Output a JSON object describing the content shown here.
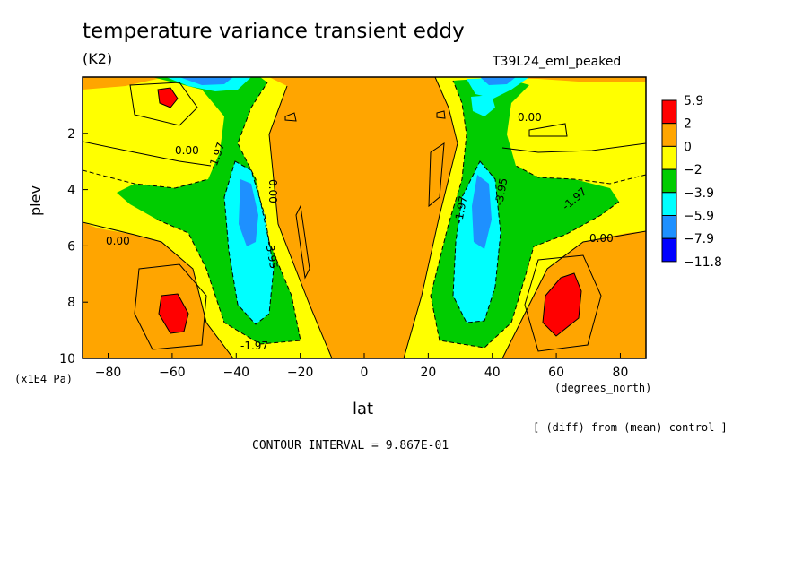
{
  "chart_data": {
    "type": "heatmap",
    "title": "temperature variance transient eddy",
    "units": "(K2)",
    "run_name": "T39L24_eml_peaked",
    "xlabel": "lat",
    "x_units": "(degrees_north)",
    "ylabel": "plev",
    "y_units": "(x1E4 Pa)",
    "xlim": [
      -88,
      88
    ],
    "ylim": [
      10,
      0
    ],
    "x_ticks": [
      "-80",
      "-60",
      "-40",
      "-20",
      "0",
      "20",
      "40",
      "60",
      "80"
    ],
    "y_ticks": [
      "2",
      "4",
      "6",
      "8",
      "10"
    ],
    "colorbar": {
      "labels": [
        "5.9",
        "2",
        "0",
        "-2",
        "-3.9",
        "-5.9",
        "-7.9",
        "-11.8"
      ],
      "colors": [
        "#ff0000",
        "#ffa500",
        "#ffff00",
        "#00cc00",
        "#00ffff",
        "#1e90ff",
        "#0000ff"
      ]
    },
    "contour_labels": [
      "0.00",
      "0.00",
      "0.00",
      "0.00",
      "0.00",
      "-1.97",
      "-1.97",
      "-1.97",
      "-3.95",
      "-3.95",
      "-1.97"
    ],
    "note": "[ (diff) from (mean) control ]",
    "contour_interval": "CONTOUR INTERVAL = 9.867E-01"
  }
}
